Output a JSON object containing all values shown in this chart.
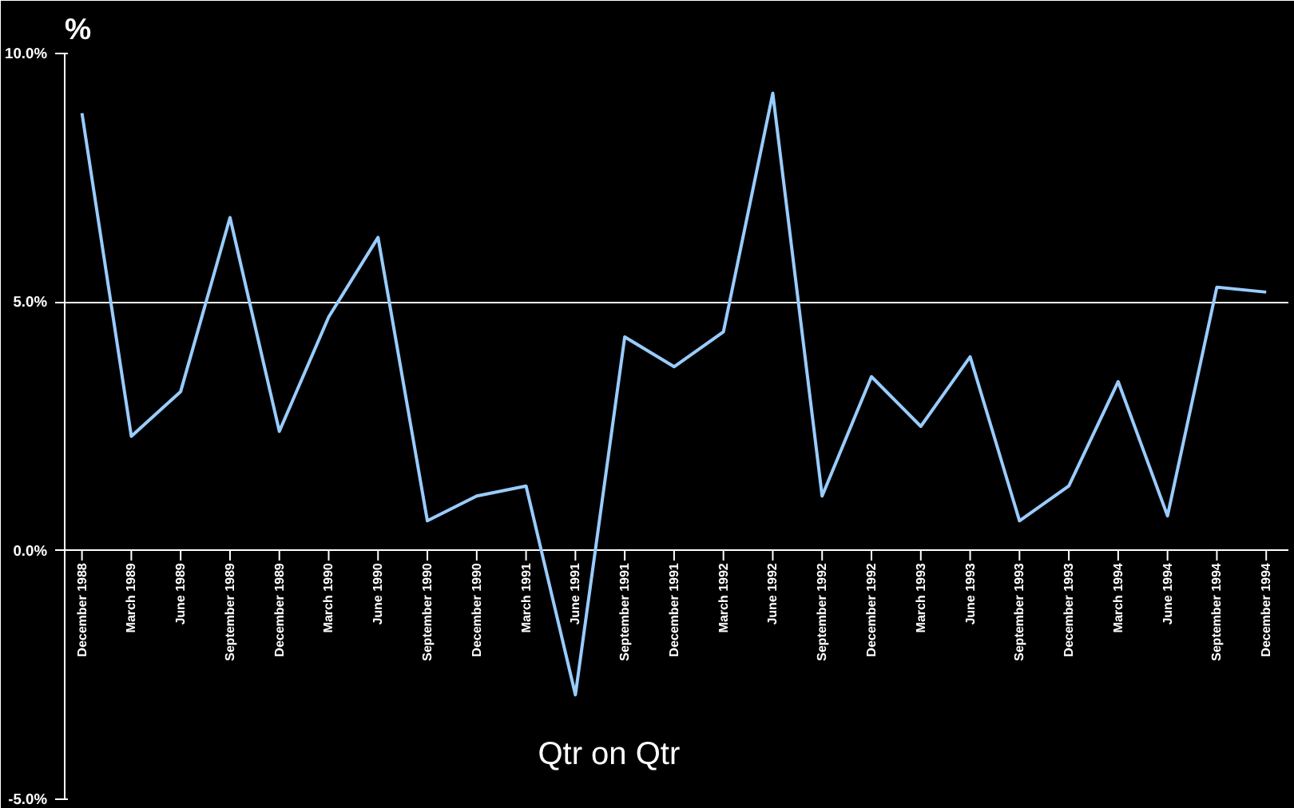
{
  "chart_data": {
    "type": "line",
    "ylabel": "%",
    "categories": [
      "December 1988",
      "March 1989",
      "June 1989",
      "September 1989",
      "December 1989",
      "March 1990",
      "June 1990",
      "September 1990",
      "December 1990",
      "March 1991",
      "June 1991",
      "September 1991",
      "December 1991",
      "March 1992",
      "June 1992",
      "September 1992",
      "December 1992",
      "March 1993",
      "June 1993",
      "September 1993",
      "December 1993",
      "March 1994",
      "June 1994",
      "September 1994",
      "December 1994"
    ],
    "series": [
      {
        "color": "#99ccff",
        "values": [
          8.8,
          2.3,
          3.2,
          6.7,
          2.4,
          4.7,
          6.3,
          0.6,
          1.1,
          1.3,
          -2.9,
          4.3,
          3.7,
          4.4,
          9.2,
          1.1,
          3.5,
          2.5,
          3.9,
          0.6,
          1.3,
          3.4,
          0.7,
          5.3,
          5.2
        ]
      }
    ],
    "ylim": [
      -5,
      10
    ],
    "yticks": [
      {
        "value": -5,
        "label": "-5.0%"
      },
      {
        "value": 0,
        "label": "0.0%"
      },
      {
        "value": 5,
        "label": "5.0%"
      },
      {
        "value": 10,
        "label": "10.0%"
      }
    ],
    "grid": "y",
    "marker": "none",
    "line_style": "solid",
    "annotations": [
      "Qtr on Qtr"
    ]
  }
}
